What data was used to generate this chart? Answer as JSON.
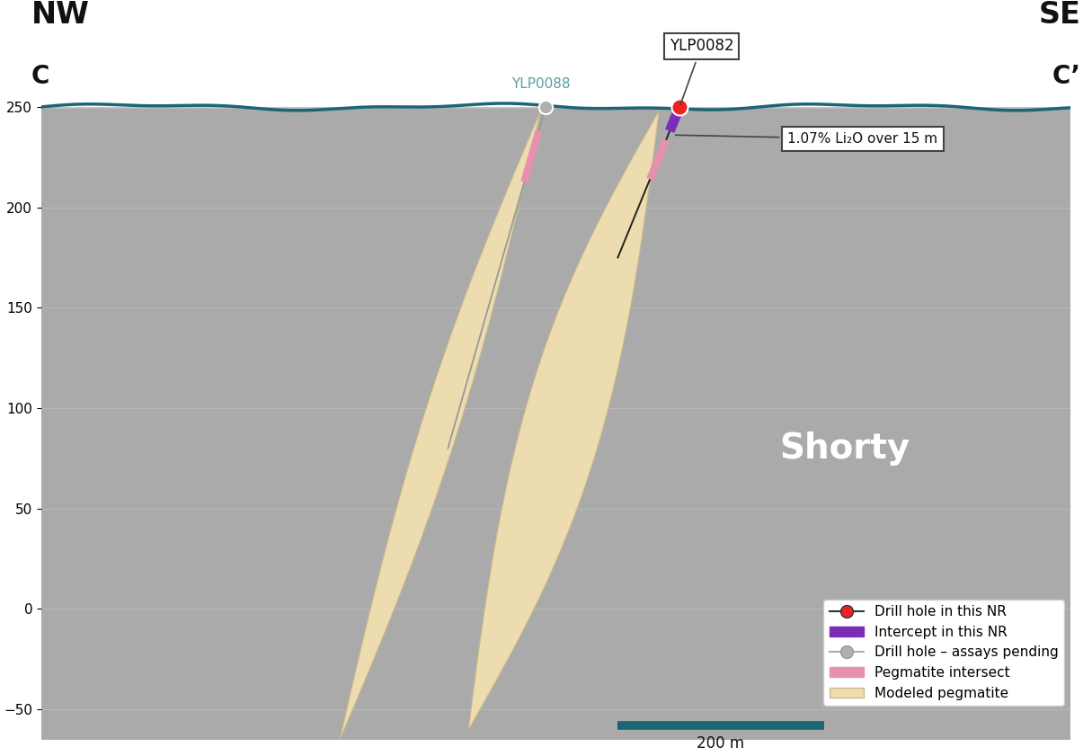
{
  "bg_color": "#aaaaaa",
  "surface_color": "#1a6675",
  "surface_y": 250,
  "ylim": [
    -65,
    275
  ],
  "xlim": [
    0,
    1000
  ],
  "ylabel_ticks": [
    -50,
    0,
    50,
    100,
    150,
    200,
    250
  ],
  "grid_color": "#bbbbbb",
  "nw_label": "NW",
  "nw_sub": "C",
  "se_label": "SE",
  "se_sub": "C’",
  "ylp0082_x": 620,
  "ylp0082_y": 250,
  "ylp0082_color": "#ee2222",
  "ylp0082_label": "YLP0082",
  "ylp0088_x": 490,
  "ylp0088_y": 250,
  "ylp0088_color": "#b0b0b0",
  "ylp0088_label": "YLP0088",
  "ylp0088_label_color": "#5a9ea0",
  "pegmatite_color": "#eddcb0",
  "pegmatite_edge": "#ccbb88",
  "intercept_color": "#7b2db8",
  "pink_color": "#e890b0",
  "shorty_label": "Shorty",
  "shorty_x": 780,
  "shorty_y": 80,
  "shorty_color": "#ffffff",
  "annotation_text": "1.07% Li₂O over 15 m",
  "scale_bar_color": "#1a6675",
  "scale_bar_label": "200 m",
  "legend_label_1": "Drill hole in this NR",
  "legend_label_2": "Intercept in this NR",
  "legend_label_3": "Drill hole – assays pending",
  "legend_label_4": "Pegmatite intersect",
  "legend_label_5": "Modeled pegmatite"
}
